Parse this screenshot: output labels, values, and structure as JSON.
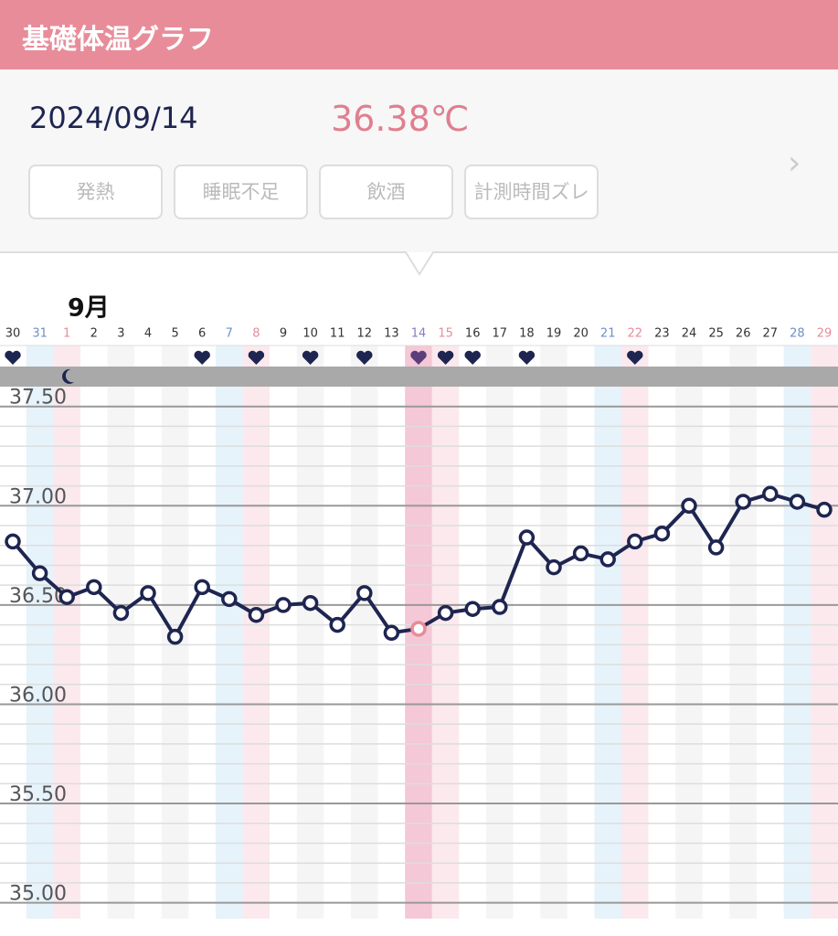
{
  "header": {
    "title": "基礎体温グラフ"
  },
  "record": {
    "date": "2024/09/14",
    "temperature": {
      "value": 36.38,
      "label": "36.38℃"
    },
    "tags": [
      "発熱",
      "睡眠不足",
      "飲酒",
      "計測時間ズレ"
    ]
  },
  "chart_data": {
    "type": "line",
    "month_label": "9月",
    "categories": [
      "30",
      "31",
      "1",
      "2",
      "3",
      "4",
      "5",
      "6",
      "7",
      "8",
      "9",
      "10",
      "11",
      "12",
      "13",
      "14",
      "15",
      "16",
      "17",
      "18",
      "19",
      "20",
      "21",
      "22",
      "23",
      "24",
      "25",
      "26",
      "27",
      "28",
      "29"
    ],
    "series": [
      {
        "name": "基礎体温",
        "color": "#1e2550",
        "values": [
          36.82,
          36.66,
          36.54,
          36.59,
          36.46,
          36.56,
          36.34,
          36.59,
          36.53,
          36.45,
          36.5,
          36.51,
          36.4,
          36.56,
          36.36,
          36.38,
          36.46,
          36.48,
          36.49,
          36.84,
          36.69,
          36.76,
          36.73,
          36.82,
          36.86,
          37.0,
          36.79,
          37.02,
          37.06,
          37.02,
          36.98
        ]
      }
    ],
    "selected": 15,
    "selected_color": "#e88c9a",
    "column_colors": [
      "#ffffff",
      "#e6f3fb",
      "#fbe9ee",
      "#ffffff",
      "#f5f5f5",
      "#ffffff",
      "#f5f5f5",
      "#ffffff",
      "#e6f3fb",
      "#fbe9ee",
      "#ffffff",
      "#f5f5f5",
      "#ffffff",
      "#f5f5f5",
      "#ffffff",
      "#f4c8d6",
      "#fbe9ee",
      "#ffffff",
      "#f5f5f5",
      "#ffffff",
      "#f5f5f5",
      "#ffffff",
      "#e6f3fb",
      "#fbe9ee",
      "#ffffff",
      "#f5f5f5",
      "#ffffff",
      "#f5f5f5",
      "#ffffff",
      "#e6f3fb",
      "#fbe9ee"
    ],
    "label_colors": [
      "#333333",
      "#6f8fc8",
      "#e88c9a",
      "#333333",
      "#333333",
      "#333333",
      "#333333",
      "#333333",
      "#6f8fc8",
      "#e88c9a",
      "#333333",
      "#333333",
      "#333333",
      "#333333",
      "#333333",
      "#8a7cc0",
      "#e88c9a",
      "#333333",
      "#333333",
      "#333333",
      "#333333",
      "#333333",
      "#6f8fc8",
      "#e88c9a",
      "#333333",
      "#333333",
      "#333333",
      "#333333",
      "#333333",
      "#6f8fc8",
      "#e88c9a"
    ],
    "hearts": [
      true,
      false,
      false,
      false,
      false,
      false,
      false,
      true,
      false,
      true,
      false,
      true,
      false,
      true,
      false,
      true,
      true,
      true,
      false,
      true,
      false,
      false,
      false,
      true,
      false,
      false,
      false,
      false,
      false,
      false,
      false
    ],
    "moon": [
      false,
      false,
      true,
      false,
      false,
      false,
      false,
      false,
      false,
      false,
      false,
      false,
      false,
      false,
      false,
      false,
      false,
      false,
      false,
      false,
      false,
      false,
      false,
      false,
      false,
      false,
      false,
      false,
      false,
      false,
      false
    ],
    "ylim": [
      34.92,
      37.6
    ],
    "yticks": [
      {
        "value": 35,
        "label": "35.00"
      },
      {
        "value": 35.5,
        "label": "35.50"
      },
      {
        "value": 36,
        "label": "36.00"
      },
      {
        "value": 36.5,
        "label": "36.50"
      },
      {
        "value": 37,
        "label": "37.00"
      },
      {
        "value": 37.5,
        "label": "37.50"
      }
    ],
    "grid": true
  }
}
